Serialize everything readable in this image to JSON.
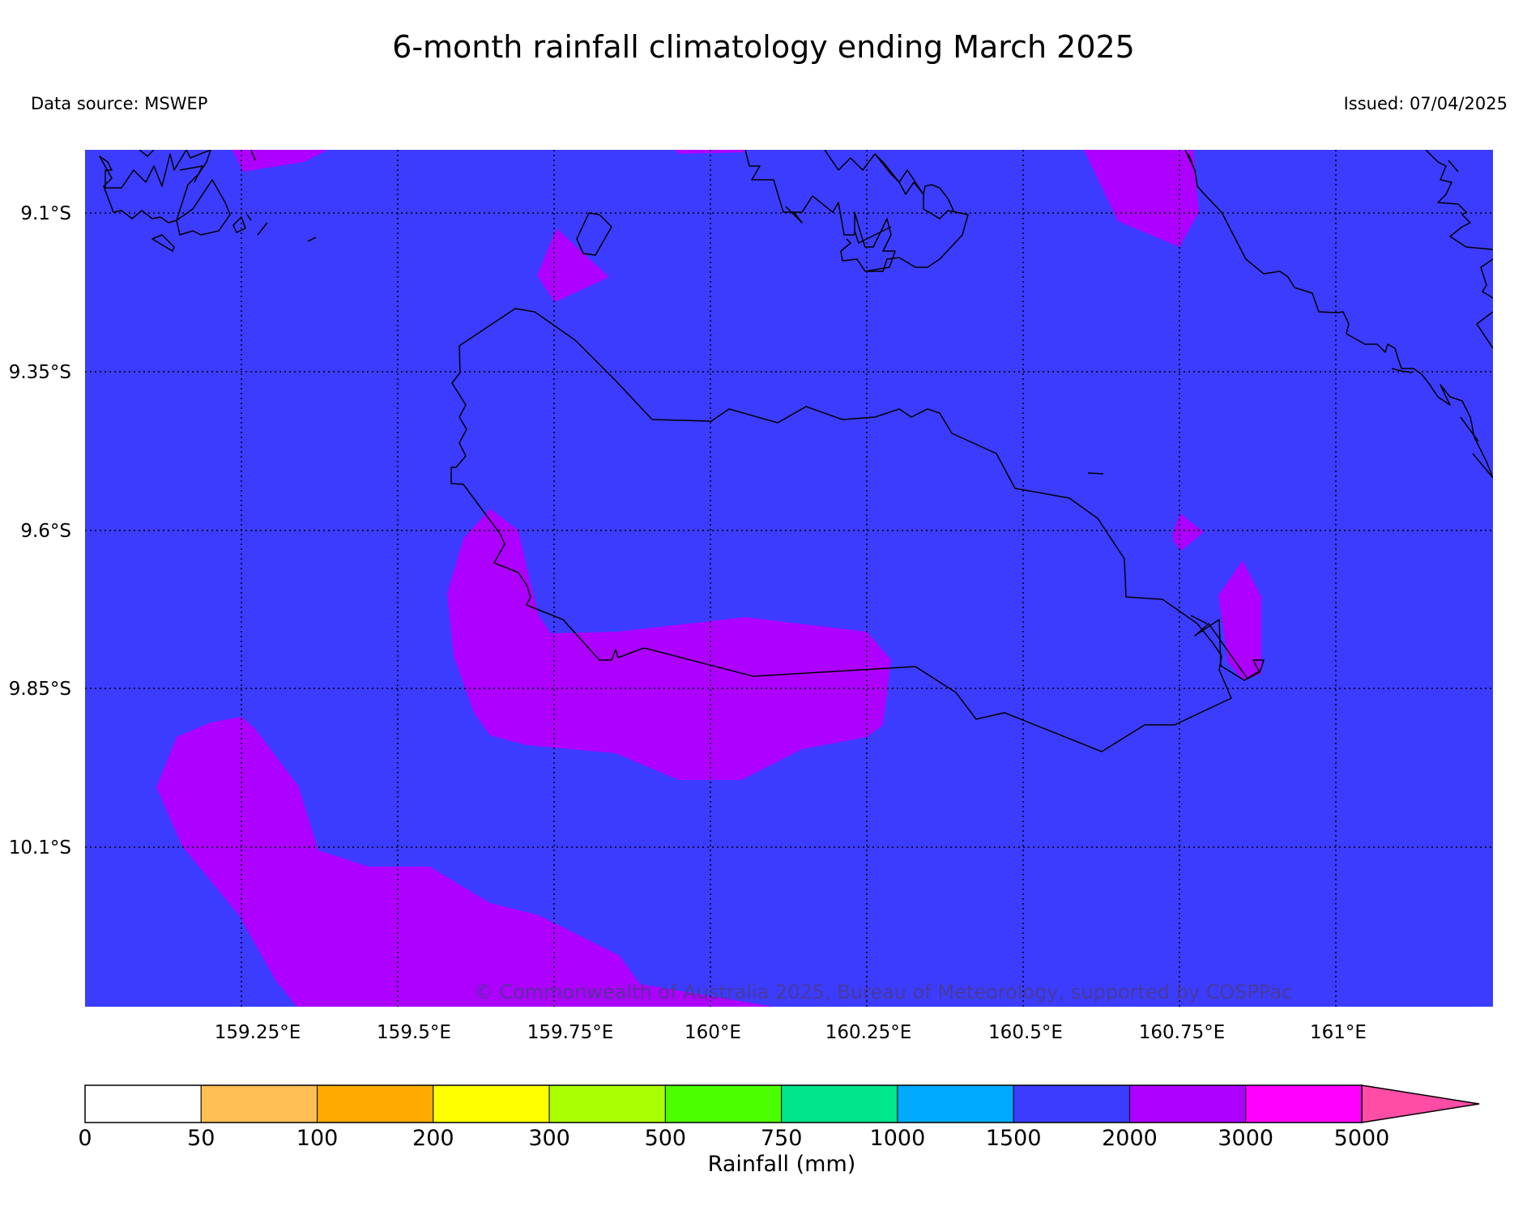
{
  "title": "6-month rainfall climatology ending March 2025",
  "source": "Data source: MSWEP",
  "issued": "Issued: 07/04/2025",
  "copyright": "© Commonwealth of Australia 2025, Bureau of Meteorology, supported by COSPPac",
  "colors": {
    "background_class": "#3c3cff",
    "class_2000_3000": "#ad00ff",
    "class_3000_5000": "#ff00ff",
    "coastline": "#000000",
    "grid": "#000000"
  },
  "map": {
    "lon_labels": [
      "159.25°E",
      "159.5°E",
      "159.75°E",
      "160°E",
      "160.25°E",
      "160.5°E",
      "160.75°E",
      "161°E"
    ],
    "lat_labels": [
      "9.1°S",
      "9.35°S",
      "9.6°S",
      "9.85°S",
      "10.1°S"
    ],
    "background_class": "1500–2000 mm"
  },
  "colorbar": {
    "label": "Rainfall (mm)",
    "ticks": [
      "0",
      "50",
      "100",
      "200",
      "300",
      "500",
      "750",
      "1000",
      "1500",
      "2000",
      "3000",
      "5000"
    ],
    "colors": [
      "#ffffff",
      "#ffbf55",
      "#ffaa00",
      "#ffff00",
      "#aaff00",
      "#4cff00",
      "#00e68c",
      "#00aaff",
      "#3c3cff",
      "#ad00ff",
      "#ff00ff"
    ],
    "extend_color": "#ff4da6"
  }
}
